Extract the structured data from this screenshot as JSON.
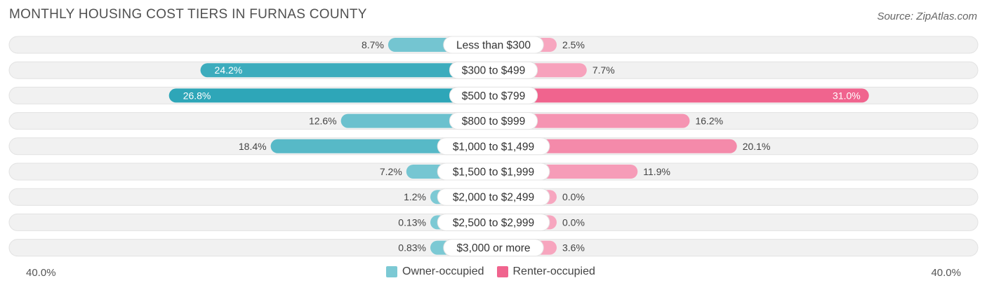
{
  "title": "MONTHLY HOUSING COST TIERS IN FURNAS COUNTY",
  "source": "Source: ZipAtlas.com",
  "colors": {
    "owner": "#2ea6b8",
    "owner_light": "#7cc9d4",
    "renter": "#f0648e",
    "renter_light": "#f7a6bf",
    "track": "#f1f1f1",
    "track_border": "#e2e2e2"
  },
  "chart_data": {
    "type": "bar",
    "orientation": "horizontal-diverging",
    "title": "MONTHLY HOUSING COST TIERS IN FURNAS COUNTY",
    "categories": [
      "Less than $300",
      "$300 to $499",
      "$500 to $799",
      "$800 to $999",
      "$1,000 to $1,499",
      "$1,500 to $1,999",
      "$2,000 to $2,499",
      "$2,500 to $2,999",
      "$3,000 or more"
    ],
    "series": [
      {
        "name": "Owner-occupied",
        "values": [
          8.7,
          24.2,
          26.8,
          12.6,
          18.4,
          7.2,
          1.2,
          0.13,
          0.83
        ],
        "labels": [
          "8.7%",
          "24.2%",
          "26.8%",
          "12.6%",
          "18.4%",
          "7.2%",
          "1.2%",
          "0.13%",
          "0.83%"
        ]
      },
      {
        "name": "Renter-occupied",
        "values": [
          2.5,
          7.7,
          31.0,
          16.2,
          20.1,
          11.9,
          0.0,
          0.0,
          3.6
        ],
        "labels": [
          "2.5%",
          "7.7%",
          "31.0%",
          "16.2%",
          "20.1%",
          "11.9%",
          "0.0%",
          "0.0%",
          "3.6%"
        ]
      }
    ],
    "xlim": [
      -40,
      40
    ],
    "axis_left_label": "40.0%",
    "axis_right_label": "40.0%",
    "legend": [
      "Owner-occupied",
      "Renter-occupied"
    ],
    "legend_position": "bottom-center"
  }
}
